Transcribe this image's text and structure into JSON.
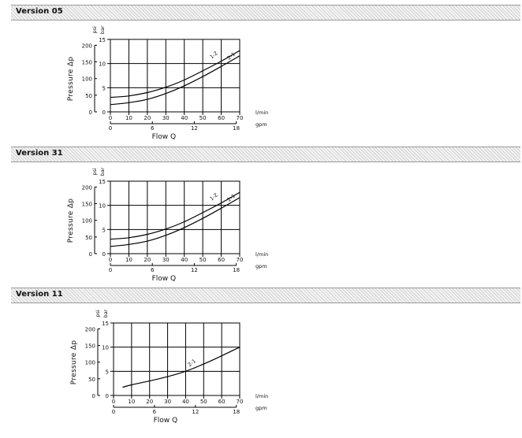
{
  "chart_data": [
    {
      "type": "line",
      "section_title": "Version 05",
      "ylabel": "Pressure Δp",
      "xlabel": "Flow Q",
      "y_unit_bar": "bar",
      "y_unit_psi": "psi",
      "x_unit_lmin": "l/min",
      "x_unit_gpm": "gpm",
      "bar_ticks": [
        "0",
        "5",
        "10",
        "15"
      ],
      "psi_ticks": [
        "0",
        "50",
        "100",
        "150",
        "200"
      ],
      "lmin_ticks": [
        "0",
        "10",
        "20",
        "30",
        "40",
        "50",
        "60",
        "70"
      ],
      "gpm_ticks": [
        "0",
        "6",
        "12",
        "18"
      ],
      "xlim": [
        0,
        70
      ],
      "ylim": [
        0,
        15
      ],
      "grid": true,
      "series": [
        {
          "name": "1-2",
          "x": [
            0,
            10,
            20,
            30,
            40,
            50,
            60,
            70
          ],
          "y": [
            3.0,
            3.3,
            4.0,
            5.1,
            6.6,
            8.5,
            10.5,
            12.7
          ]
        },
        {
          "name": "2-1",
          "x": [
            0,
            10,
            20,
            30,
            40,
            50,
            60,
            70
          ],
          "y": [
            1.5,
            1.9,
            2.6,
            3.8,
            5.4,
            7.3,
            9.4,
            11.6
          ]
        }
      ]
    },
    {
      "type": "line",
      "section_title": "Version 31",
      "ylabel": "Pressure Δp",
      "xlabel": "Flow Q",
      "y_unit_bar": "bar",
      "y_unit_psi": "psi",
      "x_unit_lmin": "l/min",
      "x_unit_gpm": "gpm",
      "bar_ticks": [
        "0",
        "5",
        "10",
        "15"
      ],
      "psi_ticks": [
        "0",
        "50",
        "100",
        "150",
        "200"
      ],
      "lmin_ticks": [
        "0",
        "10",
        "20",
        "30",
        "40",
        "50",
        "60",
        "70"
      ],
      "gpm_ticks": [
        "0",
        "6",
        "12",
        "18"
      ],
      "xlim": [
        0,
        70
      ],
      "ylim": [
        0,
        15
      ],
      "grid": true,
      "series": [
        {
          "name": "1-2",
          "x": [
            0,
            10,
            20,
            30,
            40,
            50,
            60,
            70
          ],
          "y": [
            3.0,
            3.3,
            4.0,
            5.1,
            6.6,
            8.5,
            10.5,
            12.7
          ]
        },
        {
          "name": "2-1",
          "x": [
            0,
            10,
            20,
            30,
            40,
            50,
            60,
            70
          ],
          "y": [
            1.5,
            1.9,
            2.6,
            3.8,
            5.4,
            7.3,
            9.4,
            11.6
          ]
        }
      ]
    },
    {
      "type": "line",
      "section_title": "Version 11",
      "ylabel": "Pressure Δp",
      "xlabel": "Flow Q",
      "y_unit_bar": "bar",
      "y_unit_psi": "psi",
      "x_unit_lmin": "l/min",
      "x_unit_gpm": "gpm",
      "bar_ticks": [
        "0",
        "5",
        "10",
        "15"
      ],
      "psi_ticks": [
        "0",
        "50",
        "100",
        "150",
        "200"
      ],
      "lmin_ticks": [
        "0",
        "10",
        "20",
        "30",
        "40",
        "50",
        "60",
        "70"
      ],
      "gpm_ticks": [
        "0",
        "6",
        "12",
        "18"
      ],
      "xlim": [
        0,
        70
      ],
      "ylim": [
        0,
        15
      ],
      "grid": true,
      "series": [
        {
          "name": "2-1",
          "x": [
            5,
            10,
            20,
            30,
            40,
            50,
            60,
            70
          ],
          "y": [
            1.7,
            2.2,
            3.0,
            3.9,
            5.0,
            6.5,
            8.2,
            10.0
          ]
        }
      ]
    }
  ]
}
